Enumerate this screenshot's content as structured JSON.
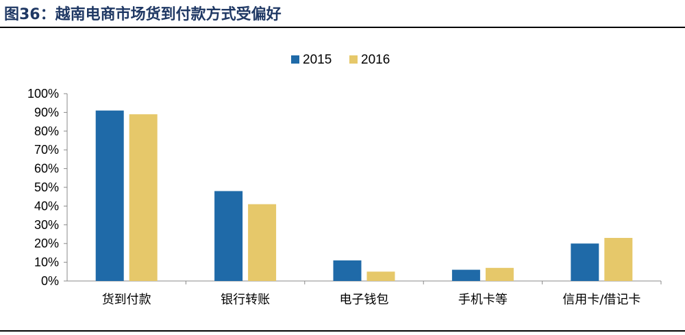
{
  "figure": {
    "title": "图36：越南电商市场货到付款方式受偏好"
  },
  "colors": {
    "series_2015": "#1f6aa8",
    "series_2016": "#e6c86a",
    "title": "#1f3864",
    "axis": "#888888"
  },
  "chart_data": {
    "type": "bar",
    "categories": [
      "货到付款",
      "银行转账",
      "电子钱包",
      "手机卡等",
      "信用卡/借记卡"
    ],
    "series": [
      {
        "name": "2015",
        "values": [
          91,
          48,
          11,
          6,
          20
        ]
      },
      {
        "name": "2016",
        "values": [
          89,
          41,
          5,
          7,
          23
        ]
      }
    ],
    "ylim": [
      0,
      100
    ],
    "yticks": [
      "0%",
      "10%",
      "20%",
      "30%",
      "40%",
      "50%",
      "60%",
      "70%",
      "80%",
      "90%",
      "100%"
    ],
    "legend_position": "top-center",
    "grid": false
  }
}
